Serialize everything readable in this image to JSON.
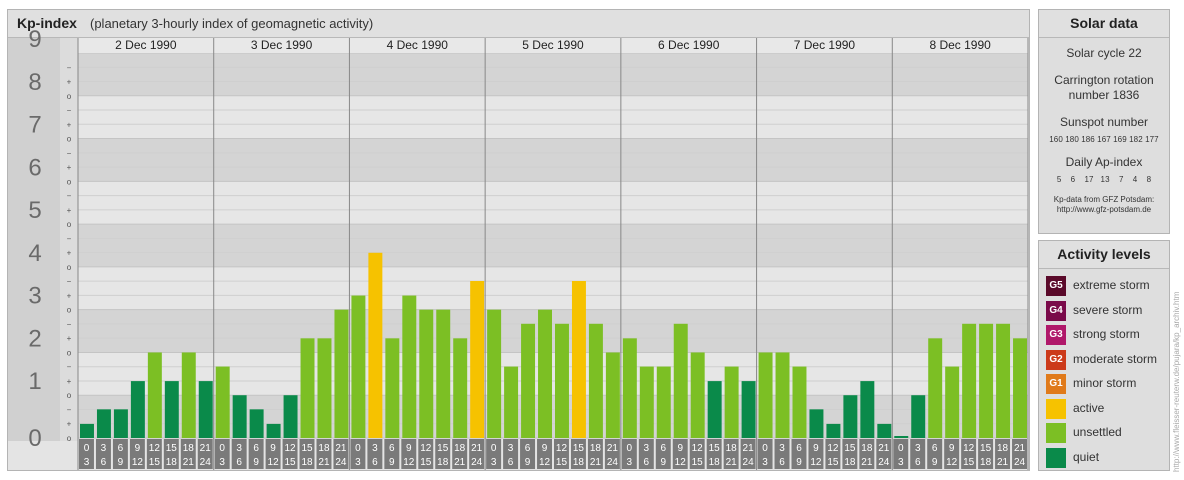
{
  "header": {
    "title": "Kp-index",
    "subtitle": "(planetary 3-hourly index of geomagnetic activity)"
  },
  "chart_data": {
    "type": "bar",
    "title": "Kp-index",
    "subtitle": "(planetary 3-hourly index of geomagnetic activity)",
    "ylim": [
      0,
      9
    ],
    "y_ticks": [
      "0",
      "1",
      "2",
      "3",
      "4",
      "5",
      "6",
      "7",
      "8",
      "9"
    ],
    "sub_ticks": [
      "o",
      "+",
      "−"
    ],
    "days": [
      "2 Dec 1990",
      "3 Dec 1990",
      "4 Dec 1990",
      "5 Dec 1990",
      "6 Dec 1990",
      "7 Dec 1990",
      "8 Dec 1990"
    ],
    "interval_start": [
      "0",
      "3",
      "6",
      "9",
      "12",
      "15",
      "18",
      "21"
    ],
    "interval_end": [
      "3",
      "6",
      "9",
      "12",
      "15",
      "18",
      "21",
      "24"
    ],
    "values": [
      0.33,
      0.67,
      0.67,
      1.33,
      2.0,
      1.33,
      2.0,
      1.33,
      1.67,
      1.0,
      0.67,
      0.33,
      1.0,
      2.33,
      2.33,
      3.0,
      3.33,
      4.33,
      2.33,
      3.33,
      3.0,
      3.0,
      2.33,
      3.67,
      3.0,
      1.67,
      2.67,
      3.0,
      2.67,
      3.67,
      2.67,
      2.0,
      2.33,
      1.67,
      1.67,
      2.67,
      2.0,
      1.33,
      1.67,
      1.33,
      2.0,
      2.0,
      1.67,
      0.67,
      0.33,
      1.0,
      1.33,
      0.33,
      0.0,
      1.0,
      2.33,
      1.67,
      2.67,
      2.67,
      2.67,
      2.33
    ],
    "colors": {
      "quiet": "#0a8a4a",
      "unsettled": "#7cbf24",
      "active": "#f6c200"
    },
    "grid": true
  },
  "solar": {
    "title": "Solar data",
    "cycle": "Solar cycle 22",
    "carrington_1": "Carrington rotation",
    "carrington_2": "number 1836",
    "sunspot_label": "Sunspot number",
    "sunspot_values": "160 180 186 167 169 182 177",
    "ap_label": "Daily Ap-index",
    "ap_values": "5    6    17   13    7    4    8",
    "source_1": "Kp-data from GFZ Potsdam:",
    "source_2": "http://www.gfz-potsdam.de"
  },
  "activity": {
    "title": "Activity levels",
    "levels": [
      {
        "code": "G5",
        "label": "extreme storm",
        "color": "#5a0a2a"
      },
      {
        "code": "G4",
        "label": "severe storm",
        "color": "#7a0a4a"
      },
      {
        "code": "G3",
        "label": "strong storm",
        "color": "#b0186a"
      },
      {
        "code": "G2",
        "label": "moderate storm",
        "color": "#cc3a1a"
      },
      {
        "code": "G1",
        "label": "minor storm",
        "color": "#e07a1a"
      },
      {
        "code": "",
        "label": "active",
        "color": "#f6c200"
      },
      {
        "code": "",
        "label": "unsettled",
        "color": "#7cbf24"
      },
      {
        "code": "",
        "label": "quiet",
        "color": "#0a8a4a"
      }
    ]
  },
  "credit": "http://www.fleisser-reuterw.de/pujara/kp_archiv.htm"
}
